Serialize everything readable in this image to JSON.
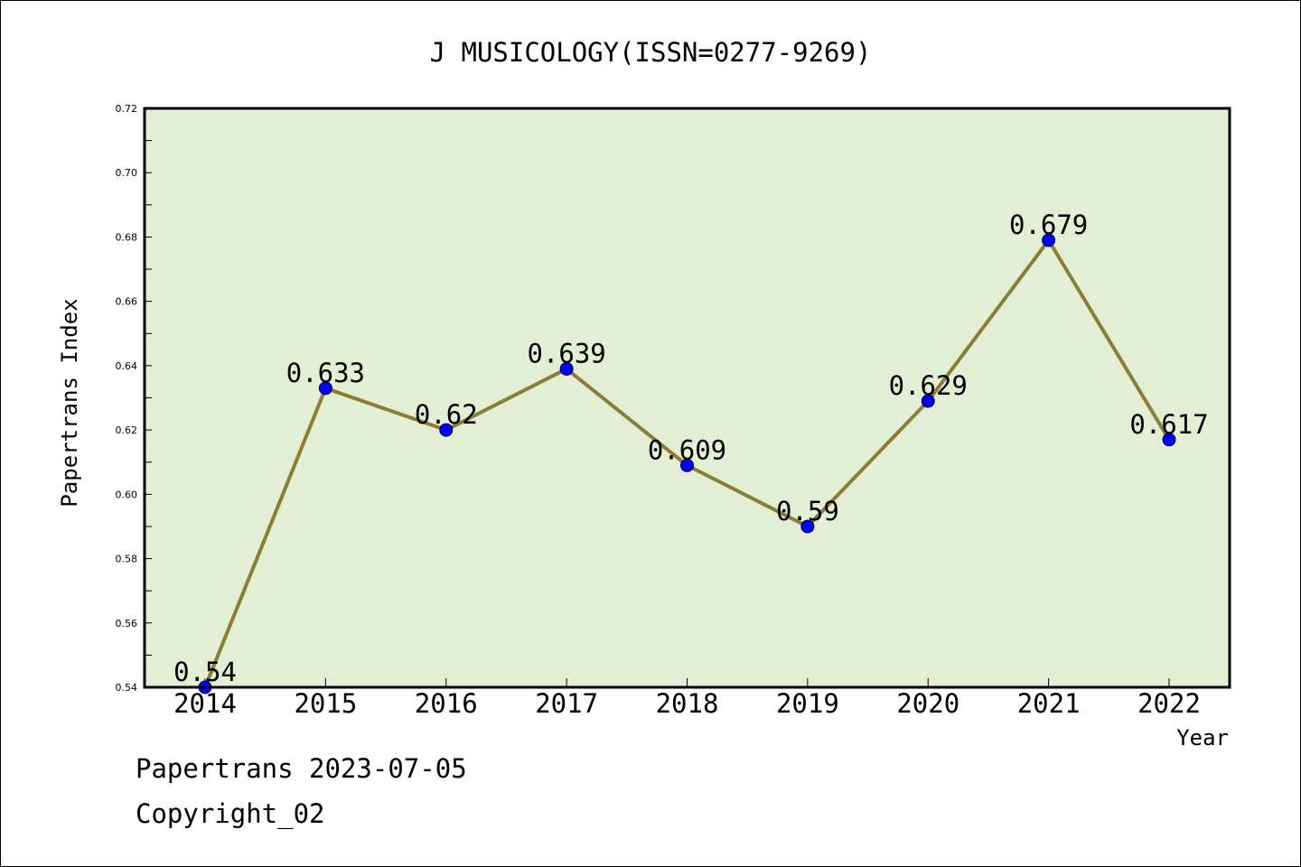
{
  "chart_data": {
    "type": "line",
    "title": "J MUSICOLOGY(ISSN=0277-9269)",
    "xlabel": "Year",
    "ylabel": "Papertrans Index",
    "categories": [
      "2014",
      "2015",
      "2016",
      "2017",
      "2018",
      "2019",
      "2020",
      "2021",
      "2022"
    ],
    "series": [
      {
        "values": [
          0.54,
          0.633,
          0.62,
          0.639,
          0.609,
          0.59,
          0.629,
          0.679,
          0.617
        ],
        "labels": [
          "0.54",
          "0.633",
          "0.62",
          "0.639",
          "0.609",
          "0.59",
          "0.629",
          "0.679",
          "0.617"
        ]
      }
    ],
    "ylim": [
      0.54,
      0.72
    ],
    "yticks": [
      0.54,
      0.56,
      0.58,
      0.6,
      0.62,
      0.64,
      0.66,
      0.68,
      0.7,
      0.72
    ],
    "ytick_labels": [
      "0.54",
      "0.56",
      "0.58",
      "0.60",
      "0.62",
      "0.64",
      "0.66",
      "0.68",
      "0.70",
      "0.72"
    ],
    "grid": false,
    "legend": "none",
    "colors": {
      "plot_background": "#e2efd4",
      "line": "#8b7d35",
      "marker": "#0000ff",
      "axis": "#000000"
    }
  },
  "footer": {
    "line1": "Papertrans 2023-07-05",
    "line2": "Copyright_02"
  }
}
